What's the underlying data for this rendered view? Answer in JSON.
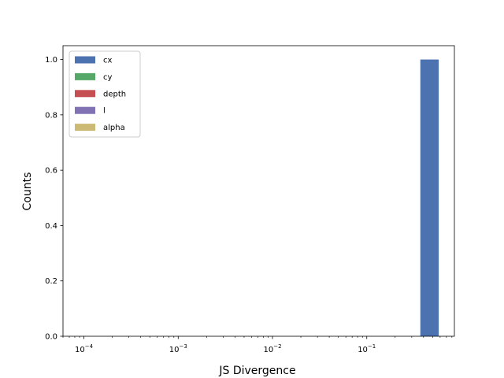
{
  "chart_data": {
    "type": "bar",
    "xlabel": "JS Divergence",
    "ylabel": "Counts",
    "x_scale": "log",
    "xlim": [
      6e-05,
      0.85
    ],
    "ylim": [
      0,
      1.05
    ],
    "x_ticks": [
      {
        "value": 0.0001,
        "base": "10",
        "exp": "−4"
      },
      {
        "value": 0.001,
        "base": "10",
        "exp": "−3"
      },
      {
        "value": 0.01,
        "base": "10",
        "exp": "−2"
      },
      {
        "value": 0.1,
        "base": "10",
        "exp": "−1"
      }
    ],
    "y_ticks": [
      "0.0",
      "0.2",
      "0.4",
      "0.6",
      "0.8",
      "1.0"
    ],
    "y_tick_values": [
      0,
      0.2,
      0.4,
      0.6,
      0.8,
      1.0
    ],
    "series": [
      {
        "name": "cx",
        "color": "#4c72b0",
        "bars": [
          {
            "x0": 0.37,
            "x1": 0.58,
            "value": 1
          }
        ]
      },
      {
        "name": "cy",
        "color": "#55a868",
        "bars": []
      },
      {
        "name": "depth",
        "color": "#c44e52",
        "bars": []
      },
      {
        "name": "l",
        "color": "#8172b3",
        "bars": []
      },
      {
        "name": "alpha",
        "color": "#ccb974",
        "bars": []
      }
    ],
    "legend": {
      "position": "upper-left"
    },
    "grid": false
  }
}
